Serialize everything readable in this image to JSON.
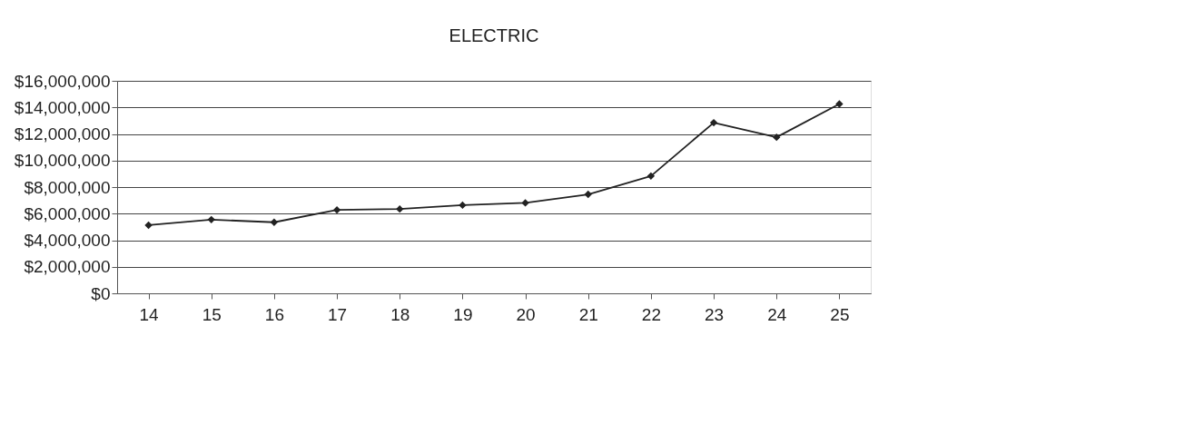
{
  "chart_data": {
    "type": "line",
    "title": "ELECTRIC",
    "categories": [
      "14",
      "15",
      "16",
      "17",
      "18",
      "19",
      "20",
      "21",
      "22",
      "23",
      "24",
      "25"
    ],
    "series": [
      {
        "color": "#222222",
        "values": [
          5130000,
          5550000,
          5350000,
          6280000,
          6350000,
          6640000,
          6810000,
          7450000,
          8830000,
          12850000,
          11750000,
          14260000
        ]
      }
    ],
    "ylim": [
      0,
      16000000
    ],
    "yticks": [
      {
        "value": 0,
        "label": "$0"
      },
      {
        "value": 2000000,
        "label": "$2,000,000"
      },
      {
        "value": 4000000,
        "label": "$4,000,000"
      },
      {
        "value": 6000000,
        "label": "$6,000,000"
      },
      {
        "value": 8000000,
        "label": "$8,000,000"
      },
      {
        "value": 10000000,
        "label": "$10,000,000"
      },
      {
        "value": 12000000,
        "label": "$12,000,000"
      },
      {
        "value": 14000000,
        "label": "$14,000,000"
      },
      {
        "value": 16000000,
        "label": "$16,000,000"
      }
    ],
    "grid": "y",
    "marker": "diamond",
    "line_style": "solid"
  }
}
